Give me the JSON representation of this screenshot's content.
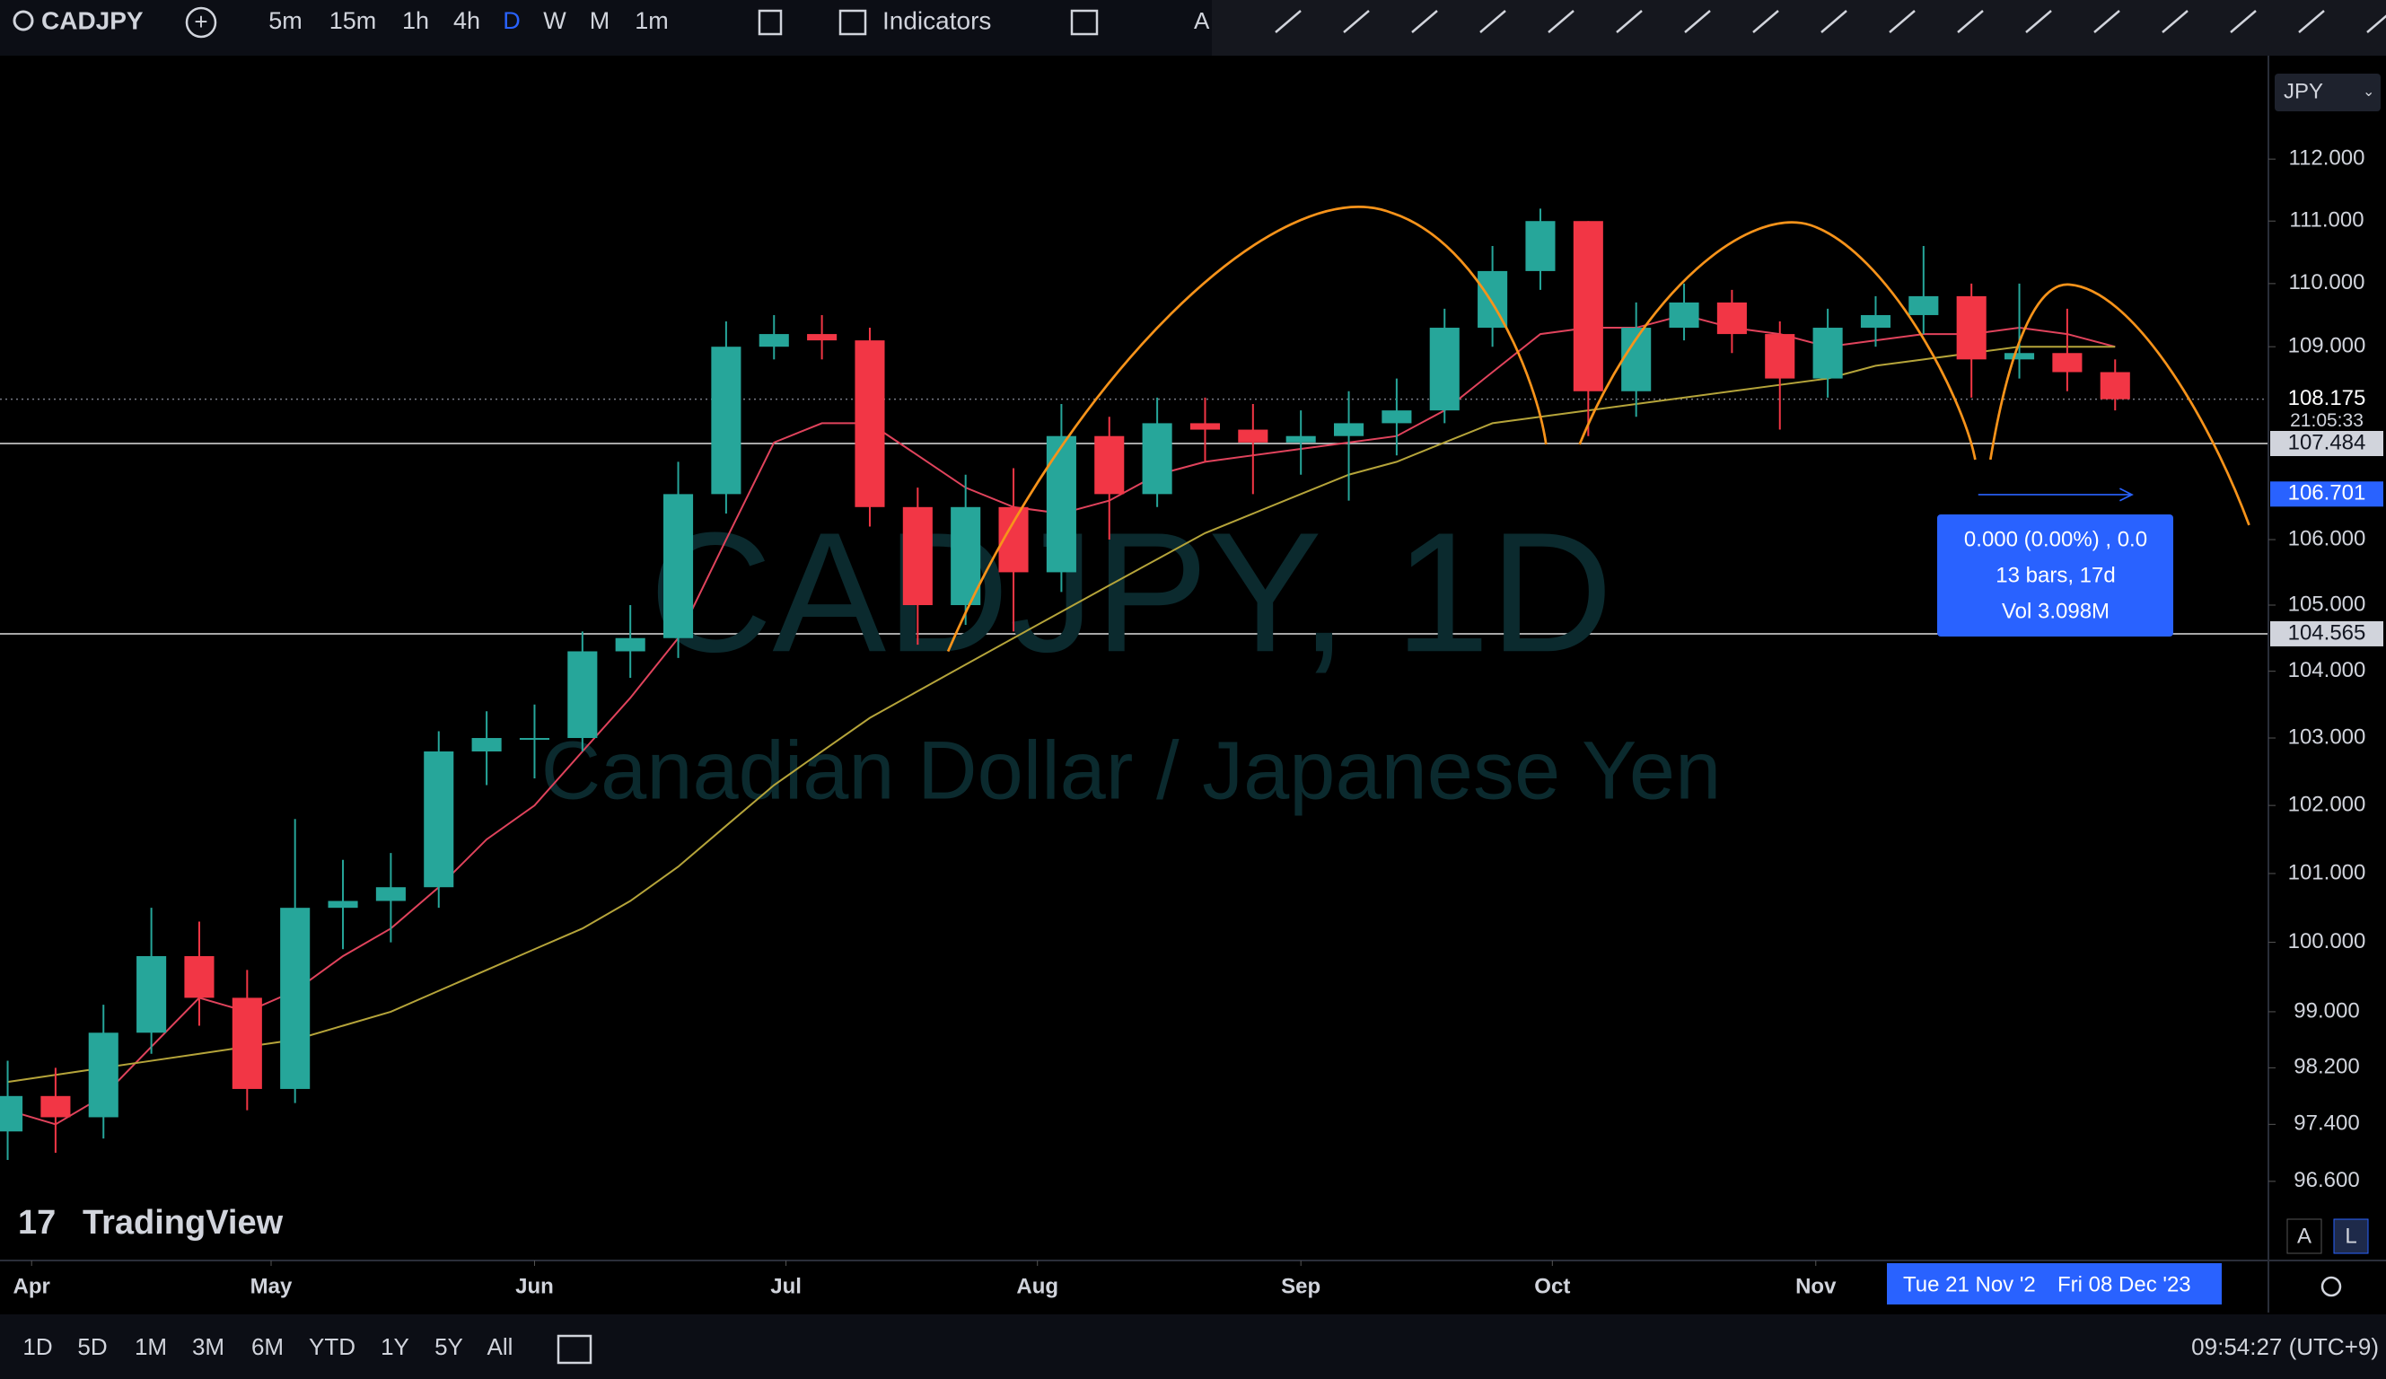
{
  "toolbar": {
    "symbol": "CADJPY",
    "intervals": [
      "5m",
      "15m",
      "1h",
      "4h",
      "D",
      "W",
      "M",
      "1m"
    ],
    "indicators": "Indicators",
    "truncated": "A"
  },
  "chart_data": {
    "type": "candlestick",
    "log_scale": true,
    "watermark": "CADJPY, 1D",
    "watermark_subtitle": "Canadian Dollar / Japanese Yen",
    "currency": "JPY",
    "up_color": "#26a69a",
    "down_color": "#f23645",
    "x": [
      0,
      4,
      8,
      12,
      16,
      20,
      24,
      28,
      32,
      36,
      40,
      44,
      48,
      52,
      56,
      60,
      64,
      68,
      72,
      76,
      80,
      84,
      88,
      92,
      96,
      100,
      104,
      108,
      112,
      116,
      120,
      124,
      128,
      132,
      136,
      140,
      144,
      148,
      152,
      156,
      160,
      164,
      168,
      172,
      176
    ],
    "open": [
      97.3,
      97.8,
      97.5,
      98.7,
      99.8,
      99.2,
      97.9,
      100.5,
      100.6,
      100.8,
      102.8,
      103.0,
      103.0,
      104.3,
      104.5,
      106.7,
      109.0,
      109.2,
      109.1,
      106.5,
      105.0,
      106.5,
      105.5,
      107.6,
      106.7,
      107.8,
      107.7,
      107.5,
      107.6,
      107.8,
      108.0,
      109.3,
      110.2,
      111.0,
      108.3,
      109.3,
      109.7,
      109.2,
      108.5,
      109.3,
      109.5,
      109.8,
      108.8,
      108.9,
      108.6
    ],
    "high": [
      98.3,
      98.2,
      99.1,
      100.5,
      100.3,
      99.6,
      101.8,
      101.2,
      101.3,
      103.1,
      103.4,
      103.5,
      104.6,
      105.0,
      107.2,
      109.4,
      109.5,
      109.5,
      109.3,
      106.8,
      107.0,
      107.1,
      108.1,
      107.9,
      108.2,
      108.2,
      108.1,
      108.0,
      108.3,
      108.5,
      109.6,
      110.6,
      111.2,
      111.0,
      109.7,
      110.0,
      109.9,
      109.4,
      109.6,
      109.8,
      110.6,
      110.0,
      110.0,
      109.6,
      108.8
    ],
    "low": [
      96.9,
      97.0,
      97.2,
      98.4,
      98.8,
      97.6,
      97.7,
      99.9,
      100.0,
      100.5,
      102.3,
      102.4,
      102.8,
      103.9,
      104.2,
      106.4,
      108.8,
      108.8,
      106.2,
      104.4,
      104.7,
      104.6,
      105.2,
      106.0,
      106.5,
      107.2,
      106.7,
      107.0,
      106.6,
      107.3,
      107.8,
      109.0,
      109.9,
      107.6,
      107.9,
      109.1,
      108.9,
      107.7,
      108.2,
      109.0,
      109.2,
      108.2,
      108.5,
      108.3,
      108.0
    ],
    "close": [
      97.8,
      97.5,
      98.7,
      99.8,
      99.2,
      97.9,
      100.5,
      100.6,
      100.8,
      102.8,
      103.0,
      103.0,
      104.3,
      104.5,
      106.7,
      109.0,
      109.2,
      109.1,
      106.5,
      105.0,
      106.5,
      105.5,
      107.6,
      106.7,
      107.8,
      107.7,
      107.5,
      107.6,
      107.8,
      108.0,
      109.3,
      110.2,
      111.0,
      108.3,
      109.3,
      109.7,
      109.2,
      108.5,
      109.3,
      109.5,
      109.8,
      108.8,
      108.9,
      108.6,
      108.175
    ],
    "series": [
      {
        "color": "#e0435c",
        "values": [
          97.6,
          97.4,
          97.8,
          98.5,
          99.2,
          99.0,
          99.3,
          99.8,
          100.2,
          100.8,
          101.5,
          102.0,
          102.8,
          103.6,
          104.5,
          106.0,
          107.5,
          107.8,
          107.8,
          107.3,
          106.8,
          106.5,
          106.4,
          106.6,
          107.0,
          107.2,
          107.3,
          107.4,
          107.5,
          107.6,
          108.0,
          108.6,
          109.2,
          109.3,
          109.3,
          109.5,
          109.3,
          109.2,
          109.0,
          109.1,
          109.2,
          109.2,
          109.3,
          109.2,
          109.0
        ]
      },
      {
        "color": "#b5a43a",
        "values": [
          98.0,
          98.1,
          98.2,
          98.3,
          98.4,
          98.5,
          98.6,
          98.8,
          99.0,
          99.3,
          99.6,
          99.9,
          100.2,
          100.6,
          101.1,
          101.7,
          102.3,
          102.8,
          103.3,
          103.7,
          104.1,
          104.5,
          104.9,
          105.3,
          105.7,
          106.1,
          106.4,
          106.7,
          107.0,
          107.2,
          107.5,
          107.8,
          107.9,
          108.0,
          108.1,
          108.2,
          108.3,
          108.4,
          108.5,
          108.7,
          108.8,
          108.9,
          109.0,
          109.0,
          109.0
        ]
      }
    ],
    "xlim": [
      -0.64,
      188.8
    ],
    "xticks": [
      {
        "value": 2,
        "label": "Apr"
      },
      {
        "value": 22,
        "label": "May"
      },
      {
        "value": 44,
        "label": "Jun"
      },
      {
        "value": 65,
        "label": "Jul"
      },
      {
        "value": 86,
        "label": "Aug"
      },
      {
        "value": 108,
        "label": "Sep"
      },
      {
        "value": 129,
        "label": "Oct"
      },
      {
        "value": 151,
        "label": "Nov"
      }
    ],
    "ylim": [
      95.5,
      113.6
    ],
    "yticks": [
      {
        "value": 112,
        "label": "112.000"
      },
      {
        "value": 111,
        "label": "111.000"
      },
      {
        "value": 110,
        "label": "110.000"
      },
      {
        "value": 109,
        "label": "109.000"
      },
      {
        "value": 106,
        "label": "106.000"
      },
      {
        "value": 105,
        "label": "105.000"
      },
      {
        "value": 104,
        "label": "104.000"
      },
      {
        "value": 103,
        "label": "103.000"
      },
      {
        "value": 102,
        "label": "102.000"
      },
      {
        "value": 101,
        "label": "101.000"
      },
      {
        "value": 100,
        "label": "100.000"
      },
      {
        "value": 99,
        "label": "99.000"
      },
      {
        "value": 98.2,
        "label": "98.200"
      },
      {
        "value": 97.4,
        "label": "97.400"
      },
      {
        "value": 96.6,
        "label": "96.600"
      }
    ],
    "last_price": 108.175,
    "countdown": "21:05:33",
    "horizontal_lines": [
      107.484,
      104.565
    ],
    "cursor_price": 106.701,
    "measure": {
      "change": "0.000 (0.00%) , 0.0",
      "bars": "13 bars, 17d",
      "volume": "Vol 3.098M"
    },
    "range_start": "Tue 21 Nov '2",
    "range_end": "Fri 08 Dec '23"
  },
  "logo": "TradingView",
  "scale_buttons": [
    "A",
    "L"
  ],
  "ranges": [
    "1D",
    "5D",
    "1M",
    "3M",
    "6M",
    "YTD",
    "1Y",
    "5Y",
    "All"
  ],
  "clock": "09:54:27 (UTC+9)"
}
